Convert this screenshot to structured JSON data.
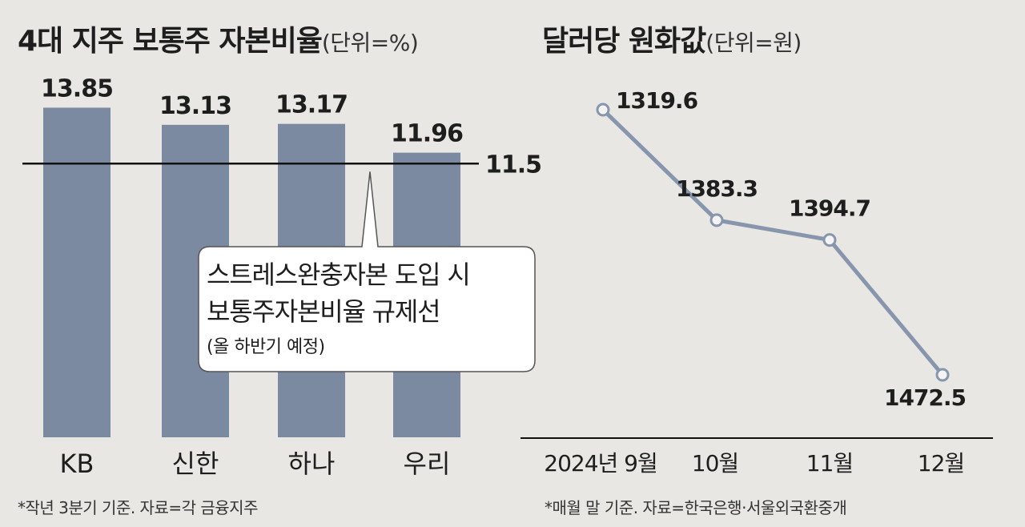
{
  "left_chart": {
    "title": "4대 지주 보통주 자본비율",
    "unit": "(단위=%)",
    "footnote": "*작년 3분기 기준. 자료=각 금융지주",
    "callout": {
      "line1": "스트레스완충자본 도입 시",
      "line2": "보통주자본비율 규제선",
      "line3": "(올 하반기 예정)"
    }
  },
  "right_chart": {
    "title": "달러당 원화값",
    "unit": "(단위=원)",
    "footnote": "*매월 말 기준. 자료=한국은행·서울외국환중개"
  },
  "colors": {
    "bar": "#7b8aa0",
    "line": "#8796ac",
    "background": "#e8e7e4",
    "reference_line": "#111111"
  },
  "chart_data": [
    {
      "type": "bar",
      "categories": [
        "KB",
        "신한",
        "하나",
        "우리"
      ],
      "values": [
        13.85,
        13.13,
        13.17,
        11.96
      ],
      "value_labels": [
        "13.85",
        "13.13",
        "13.17",
        "11.96"
      ],
      "reference_line": {
        "value": 11.5,
        "label": "11.5"
      },
      "ylim": [
        0,
        14
      ],
      "grid": false,
      "legend": "none"
    },
    {
      "type": "line",
      "categories": [
        "2024년 9월",
        "10월",
        "11월",
        "12월"
      ],
      "values": [
        1319.6,
        1383.3,
        1394.7,
        1472.5
      ],
      "value_labels": [
        "1319.6",
        "1383.3",
        "1394.7",
        "1472.5"
      ],
      "axis_inverted": true,
      "ylim": [
        1300,
        1480
      ],
      "grid": false,
      "legend": "none"
    }
  ]
}
